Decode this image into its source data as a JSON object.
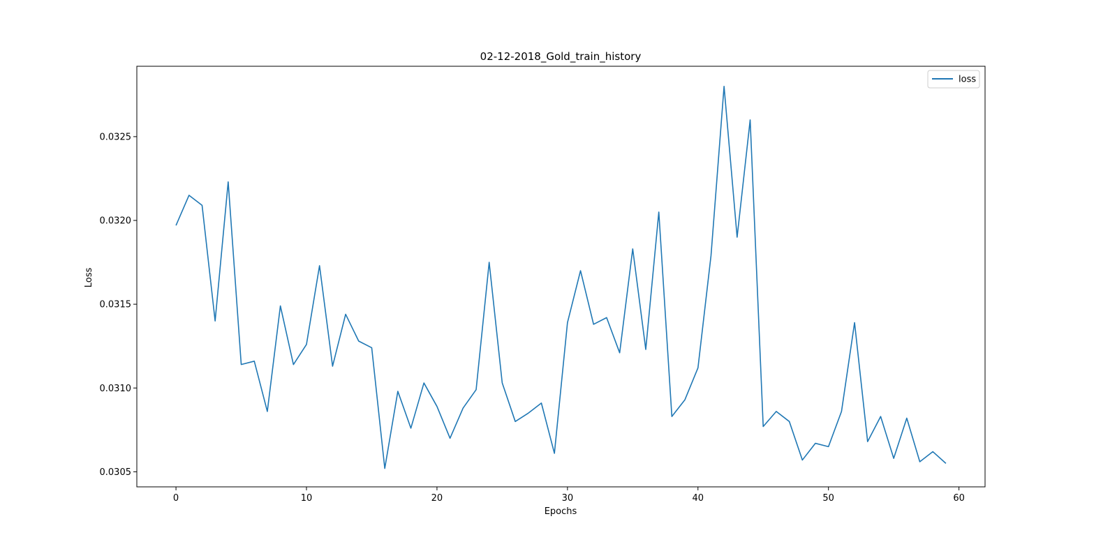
{
  "chart_data": {
    "type": "line",
    "title": "02-12-2018_Gold_train_history",
    "xlabel": "Epochs",
    "ylabel": "Loss",
    "xlim": [
      -3,
      62
    ],
    "ylim": [
      0.03041,
      0.03292
    ],
    "xticks": [
      0,
      10,
      20,
      30,
      40,
      50,
      60
    ],
    "yticks": [
      0.0305,
      0.031,
      0.0315,
      0.032,
      0.0325
    ],
    "ytick_labels": [
      "0.0305",
      "0.0310",
      "0.0315",
      "0.0320",
      "0.0325"
    ],
    "grid": false,
    "legend_position": "top-right",
    "x": [
      0,
      1,
      2,
      3,
      4,
      5,
      6,
      7,
      8,
      9,
      10,
      11,
      12,
      13,
      14,
      15,
      16,
      17,
      18,
      19,
      20,
      21,
      22,
      23,
      24,
      25,
      26,
      27,
      28,
      29,
      30,
      31,
      32,
      33,
      34,
      35,
      36,
      37,
      38,
      39,
      40,
      41,
      42,
      43,
      44,
      45,
      46,
      47,
      48,
      49,
      50,
      51,
      52,
      53,
      54,
      55,
      56,
      57,
      58,
      59
    ],
    "series": [
      {
        "name": "loss",
        "color": "#1f77b4",
        "values": [
          0.03197,
          0.03215,
          0.03209,
          0.0314,
          0.03223,
          0.03114,
          0.03116,
          0.03086,
          0.03149,
          0.03114,
          0.03126,
          0.03173,
          0.03113,
          0.03144,
          0.03128,
          0.03124,
          0.03052,
          0.03098,
          0.03076,
          0.03103,
          0.03089,
          0.0307,
          0.03088,
          0.03099,
          0.03175,
          0.03103,
          0.0308,
          0.03085,
          0.03091,
          0.03061,
          0.03139,
          0.0317,
          0.03138,
          0.03142,
          0.03121,
          0.03183,
          0.03123,
          0.03205,
          0.03083,
          0.03093,
          0.03112,
          0.03179,
          0.0328,
          0.0319,
          0.0326,
          0.03077,
          0.03086,
          0.0308,
          0.03057,
          0.03067,
          0.03065,
          0.03086,
          0.03139,
          0.03068,
          0.03083,
          0.03058,
          0.03082,
          0.03056,
          0.03062,
          0.03055
        ]
      }
    ]
  }
}
